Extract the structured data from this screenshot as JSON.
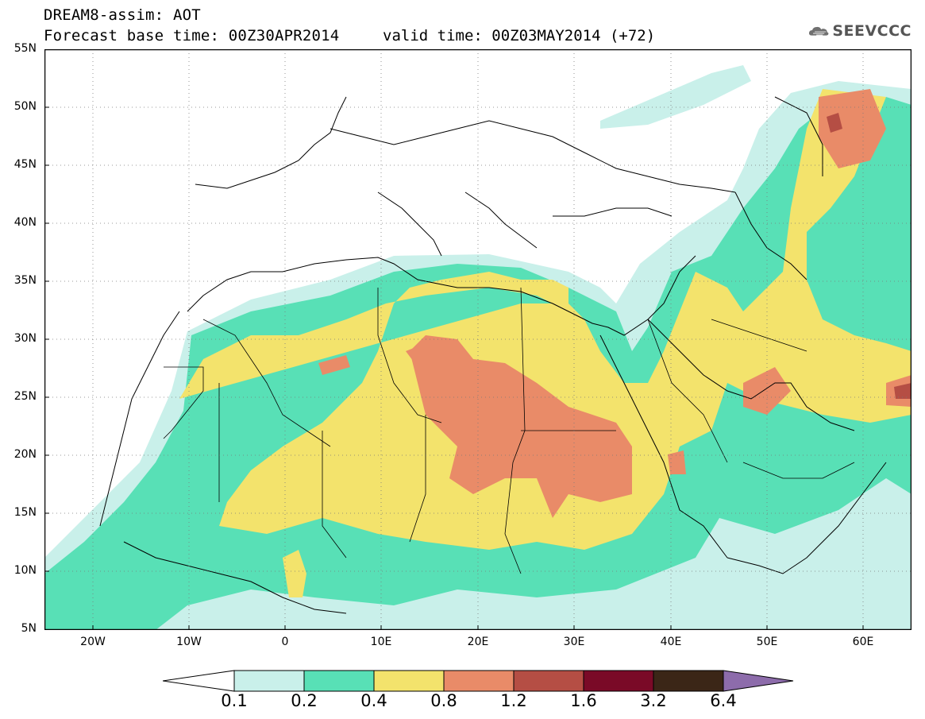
{
  "header": {
    "line1": "DREAM8-assim: AOT",
    "line2": "Forecast base time: 00Z30APR2014",
    "valid_time": "valid time: 00Z03MAY2014 (+72)",
    "logo_text": "SEEVCCC",
    "logo_icon": "cloud-icon"
  },
  "map": {
    "lat_labels": [
      "55N",
      "50N",
      "45N",
      "40N",
      "35N",
      "30N",
      "25N",
      "20N",
      "15N",
      "10N",
      "5N"
    ],
    "lon_labels": [
      "20W",
      "10W",
      "0",
      "10E",
      "20E",
      "30E",
      "40E",
      "50E",
      "60E"
    ],
    "grid": true,
    "extent": {
      "lon": [
        -25,
        65
      ],
      "lat": [
        5,
        55
      ]
    }
  },
  "legend": {
    "thresholds": [
      "0.1",
      "0.2",
      "0.4",
      "0.8",
      "1.2",
      "1.6",
      "3.2",
      "6.4"
    ],
    "colors": {
      "c1": "#c9f0ea",
      "c2": "#58e0b6",
      "c3": "#f3e36c",
      "c4": "#e98b68",
      "c5": "#b54e44",
      "c6": "#7a0a27",
      "c7": "#3b2617",
      "c8": "#8d6cab"
    }
  }
}
